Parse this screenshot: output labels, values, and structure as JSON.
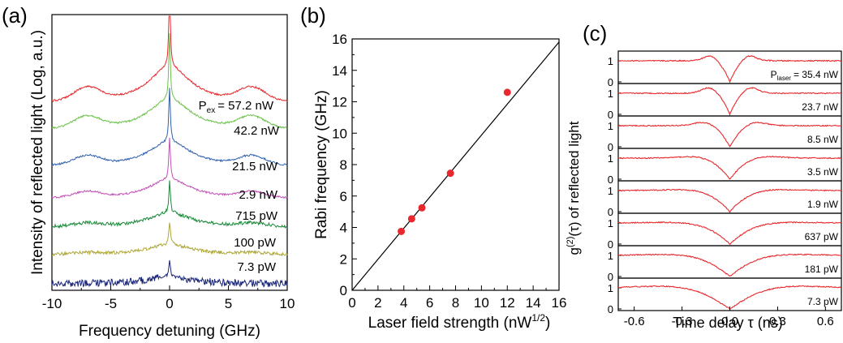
{
  "chart_data": [
    {
      "type": "line",
      "panel_label": "(a)",
      "xlabel": "Frequency detuning (GHz)",
      "ylabel": "Intensity of reflected light (Log, a.u.)",
      "xlim": [
        -10,
        10
      ],
      "xticks": [
        "-10",
        "-5",
        "0",
        "5",
        "10"
      ],
      "grid": false,
      "annotation_prefix": "P",
      "annotation_sub": "ex",
      "series": [
        {
          "label": "= 57.2 nW",
          "color": "#e8282d",
          "peak": 8.1,
          "sideband": 7.4
        },
        {
          "label": "42.2 nW",
          "color": "#6cc24a",
          "peak": 6.8,
          "sideband": 6.5
        },
        {
          "label": "21.5 nW",
          "color": "#2f60b0",
          "peak": 5.5,
          "sideband": 5.0
        },
        {
          "label": "2.9 nW",
          "color": "#c450b8",
          "peak": 4.3,
          "sideband": 3.3
        },
        {
          "label": "715 pW",
          "color": "#1b8a3a",
          "peak": 3.2,
          "sideband": 1.8
        },
        {
          "label": "100 pW",
          "color": "#b0a836",
          "peak": 2.3,
          "sideband": 0.8
        },
        {
          "label": "7.3 pW",
          "color": "#1a2577",
          "peak": 1.6,
          "sideband": 0
        }
      ]
    },
    {
      "type": "scatter",
      "panel_label": "(b)",
      "xlabel": "Laser field strength (nW",
      "xlabel_sup": "1/2",
      "xlabel_end": ")",
      "ylabel": "Rabi frequency (GHz)",
      "xlim": [
        0,
        16
      ],
      "ylim": [
        0,
        16
      ],
      "xticks": [
        "0",
        "2",
        "4",
        "6",
        "8",
        "10",
        "12",
        "14",
        "16"
      ],
      "yticks": [
        "0",
        "2",
        "4",
        "6",
        "8",
        "10",
        "12",
        "14",
        "16"
      ],
      "grid": false,
      "points": {
        "x": [
          3.8,
          4.6,
          5.4,
          7.6,
          12.0
        ],
        "y": [
          3.75,
          4.55,
          5.25,
          7.45,
          12.6
        ]
      },
      "point_color": "#e8282d",
      "fit_line": {
        "x": [
          0,
          16
        ],
        "y": [
          0,
          15.8
        ]
      }
    },
    {
      "type": "line",
      "panel_label": "(c)",
      "xlabel": "Time delay τ (ns)",
      "ylabel": "of reflected light",
      "ylabel_prefix": "g",
      "ylabel_sup": "(2)",
      "ylabel_arg": "(τ)",
      "xlim": [
        -0.7,
        0.7
      ],
      "xticks": [
        "-0.6",
        "-0.3",
        "0.0",
        "0.3",
        "0.6"
      ],
      "yticks": [
        "0",
        "1"
      ],
      "grid": false,
      "annotation_prefix": "P",
      "annotation_sub": "laser",
      "series": [
        {
          "label": "= 35.4 nW",
          "width": 0.055,
          "osc": 0.12,
          "bump": 0.22
        },
        {
          "label": "23.7 nW",
          "width": 0.06,
          "osc": 0.1,
          "bump": 0.2
        },
        {
          "label": "8.5 nW",
          "width": 0.075,
          "osc": 0.13,
          "bump": 0.1
        },
        {
          "label": "3.5 nW",
          "width": 0.1,
          "osc": 0.2,
          "bump": 0.04
        },
        {
          "label": "1.9 nW",
          "width": 0.12,
          "osc": 0.25,
          "bump": 0.02
        },
        {
          "label": "637 pW",
          "width": 0.14,
          "osc": 0.3,
          "bump": 0
        },
        {
          "label": "181 pW",
          "width": 0.16,
          "osc": 0.3,
          "bump": 0
        },
        {
          "label": "7.3 pW",
          "width": 0.2,
          "osc": 0.3,
          "bump": 0
        }
      ],
      "line_color": "#e8282d"
    }
  ]
}
